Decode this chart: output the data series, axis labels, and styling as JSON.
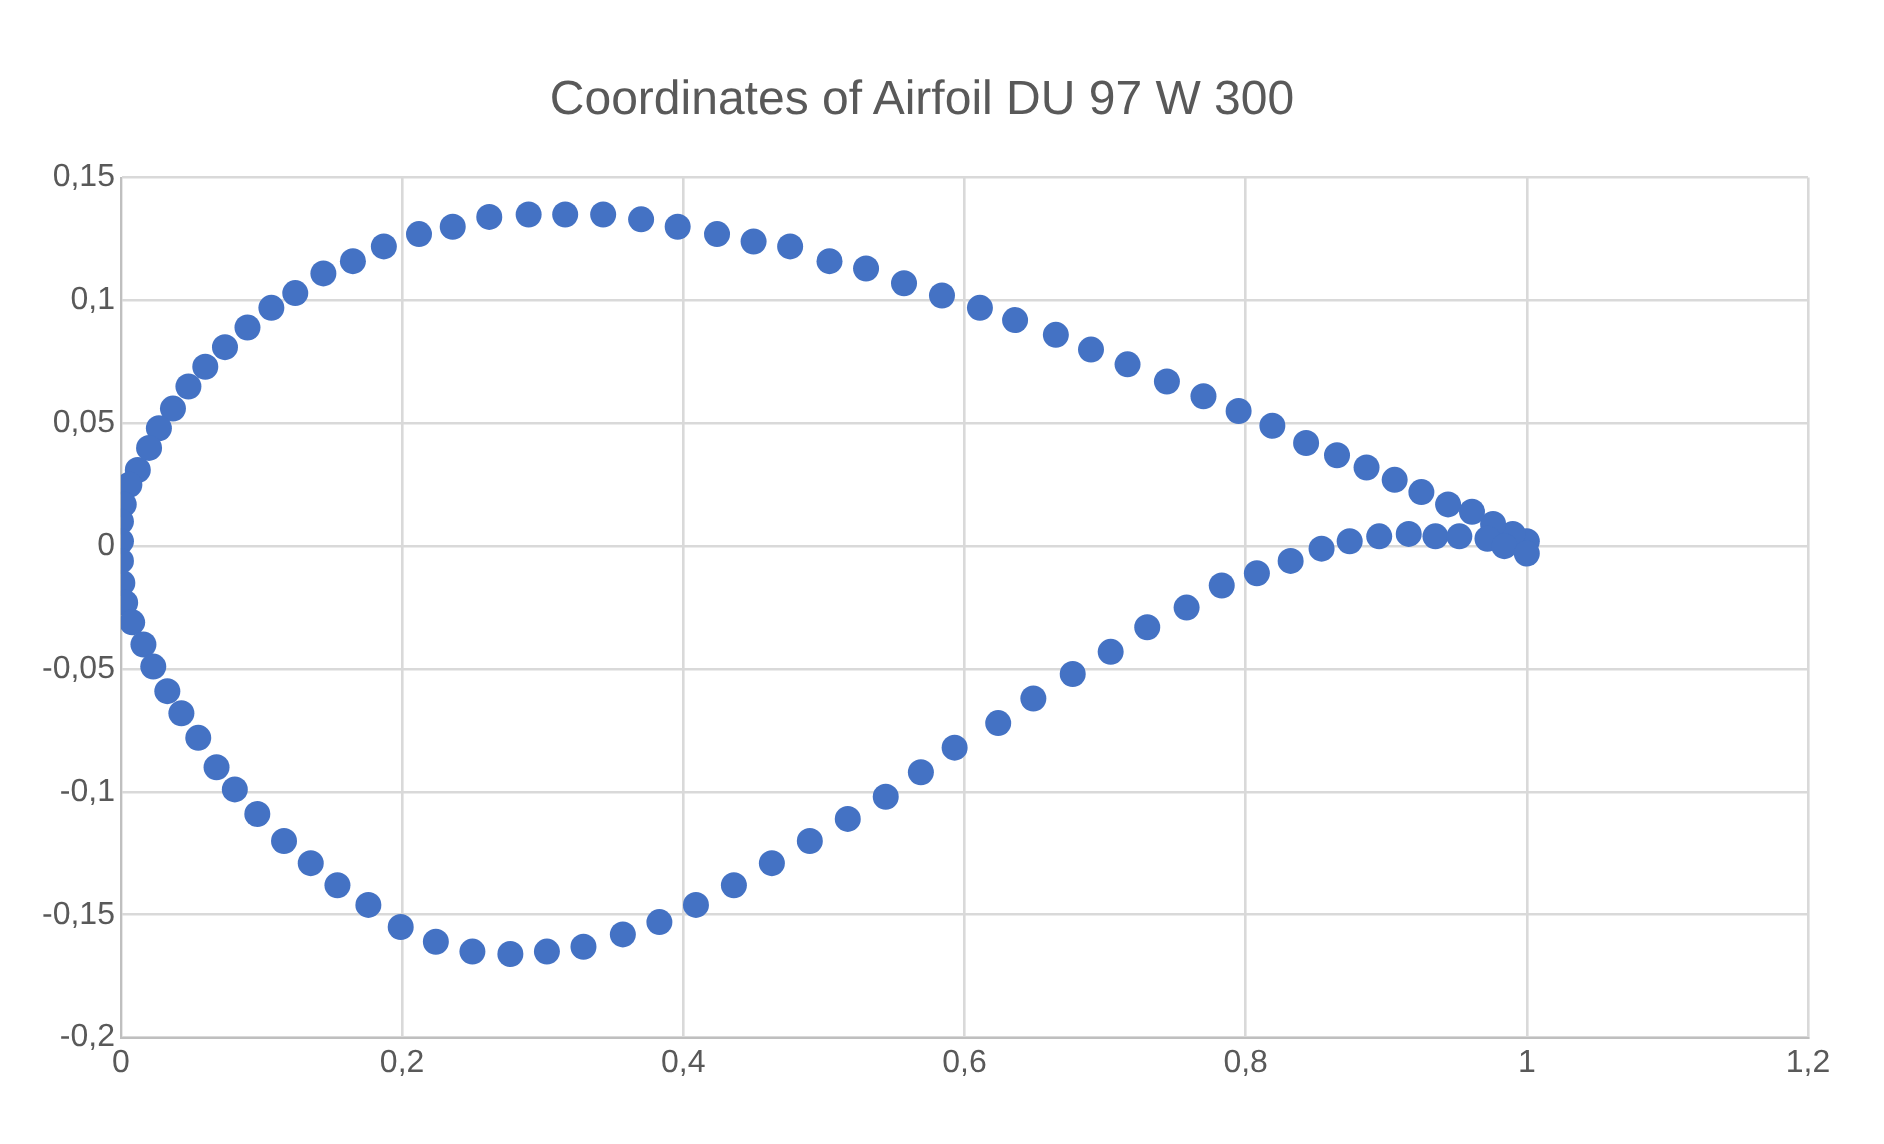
{
  "chart_data": {
    "type": "scatter",
    "title": "Coordinates of Airfoil DU 97 W 300",
    "series": [
      {
        "color": "#4472c4",
        "x": [
          1.0,
          0.99,
          0.976,
          0.961,
          0.944,
          0.925,
          0.906,
          0.886,
          0.865,
          0.843,
          0.819,
          0.795,
          0.77,
          0.744,
          0.716,
          0.69,
          0.665,
          0.636,
          0.611,
          0.584,
          0.557,
          0.53,
          0.504,
          0.476,
          0.45,
          0.424,
          0.396,
          0.37,
          0.343,
          0.316,
          0.29,
          0.262,
          0.236,
          0.212,
          0.187,
          0.165,
          0.144,
          0.124,
          0.107,
          0.09,
          0.074,
          0.06,
          0.048,
          0.037,
          0.027,
          0.02,
          0.012,
          0.006,
          0.002,
          0,
          0,
          0,
          0.001,
          0.003,
          0.008,
          0.016,
          0.023,
          0.033,
          0.043,
          0.055,
          0.068,
          0.081,
          0.097,
          0.116,
          0.135,
          0.154,
          0.176,
          0.199,
          0.224,
          0.25,
          0.277,
          0.303,
          0.329,
          0.357,
          0.383,
          0.409,
          0.436,
          0.463,
          0.49,
          0.517,
          0.544,
          0.569,
          0.593,
          0.624,
          0.649,
          0.677,
          0.704,
          0.73,
          0.758,
          0.783,
          0.808,
          0.832,
          0.854,
          0.874,
          0.895,
          0.916,
          0.935,
          0.952,
          0.972,
          0.984,
          1.0
        ],
        "values": [
          0.002,
          0.005,
          0.009,
          0.014,
          0.017,
          0.022,
          0.027,
          0.032,
          0.037,
          0.042,
          0.049,
          0.055,
          0.061,
          0.067,
          0.074,
          0.08,
          0.086,
          0.092,
          0.097,
          0.102,
          0.107,
          0.113,
          0.116,
          0.122,
          0.124,
          0.127,
          0.13,
          0.133,
          0.135,
          0.135,
          0.135,
          0.134,
          0.13,
          0.127,
          0.122,
          0.116,
          0.111,
          0.103,
          0.097,
          0.089,
          0.081,
          0.073,
          0.065,
          0.056,
          0.048,
          0.04,
          0.031,
          0.025,
          0.017,
          0.01,
          0.002,
          -0.006,
          -0.015,
          -0.023,
          -0.031,
          -0.04,
          -0.049,
          -0.059,
          -0.068,
          -0.078,
          -0.09,
          -0.099,
          -0.109,
          -0.12,
          -0.129,
          -0.138,
          -0.146,
          -0.155,
          -0.161,
          -0.165,
          -0.166,
          -0.165,
          -0.163,
          -0.158,
          -0.153,
          -0.146,
          -0.138,
          -0.129,
          -0.12,
          -0.111,
          -0.102,
          -0.092,
          -0.082,
          -0.072,
          -0.062,
          -0.052,
          -0.043,
          -0.033,
          -0.025,
          -0.016,
          -0.011,
          -0.006,
          -0.001,
          0.002,
          0.004,
          0.005,
          0.004,
          0.004,
          0.003,
          0.0,
          -0.003
        ]
      }
    ],
    "xlim": [
      0,
      1.2
    ],
    "xticks": [
      0,
      {
        "value": 0.2,
        "label": "0,2"
      },
      {
        "value": 0.4,
        "label": "0,4"
      },
      {
        "value": 0.6,
        "label": "0,6"
      },
      {
        "value": 0.8,
        "label": "0,8"
      },
      1,
      {
        "value": 1.2,
        "label": "1,2"
      }
    ],
    "ylim": [
      -0.2,
      0.15
    ],
    "yticks": [
      {
        "value": -0.2,
        "label": "-0,2"
      },
      {
        "value": -0.15,
        "label": "-0,15"
      },
      {
        "value": -0.1,
        "label": "-0,1"
      },
      {
        "value": -0.05,
        "label": "-0,05"
      },
      0,
      {
        "value": 0.05,
        "label": "0,05"
      },
      {
        "value": 0.1,
        "label": "0,1"
      },
      {
        "value": 0.15,
        "label": "0,15"
      }
    ],
    "grid": true,
    "marker": "circle",
    "legend": false
  }
}
